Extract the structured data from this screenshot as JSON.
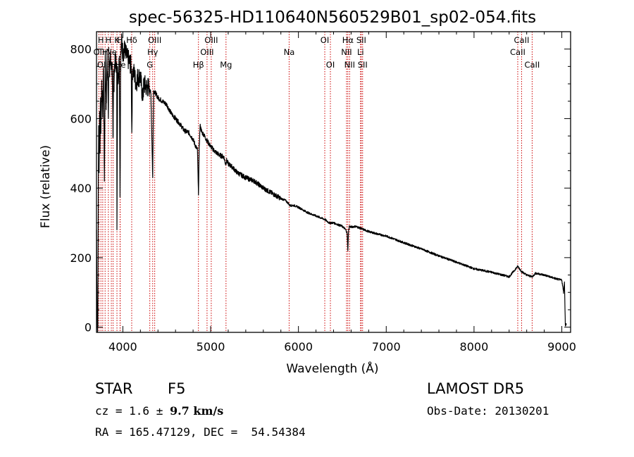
{
  "chart_data": {
    "type": "line",
    "title": "spec-56325-HD110640N560529B01_sp02-054.fits",
    "xlabel": "Wavelength (Å)",
    "ylabel": "Flux (relative)",
    "xlim": [
      3700,
      9100
    ],
    "ylim": [
      -15,
      850
    ],
    "x_ticks": [
      4000,
      5000,
      6000,
      7000,
      8000,
      9000
    ],
    "y_ticks": [
      0,
      200,
      400,
      600,
      800
    ],
    "grid": false,
    "line_color": "#000000",
    "marker_color": "#cc0000",
    "series": [
      {
        "x": [
          3700,
          3705,
          3710,
          3715,
          3720,
          3725,
          3730,
          3735,
          3740,
          3745,
          3750,
          3760,
          3770,
          3780,
          3790,
          3800,
          3810,
          3820,
          3830,
          3835,
          3840,
          3850,
          3860,
          3870,
          3880,
          3889,
          3895,
          3900,
          3910,
          3920,
          3930,
          3933,
          3940,
          3950,
          3960,
          3968,
          3975,
          3985,
          4000,
          4020,
          4040,
          4060,
          4080,
          4095,
          4102,
          4110,
          4130,
          4150,
          4170,
          4200,
          4226,
          4240,
          4270,
          4300,
          4320,
          4340,
          4350,
          4380,
          4400,
          4450,
          4500,
          4550,
          4600,
          4650,
          4700,
          4750,
          4800,
          4830,
          4850,
          4861,
          4870,
          4880,
          4900,
          4920,
          4950,
          5000,
          5050,
          5100,
          5150,
          5170,
          5183,
          5200,
          5250,
          5300,
          5400,
          5500,
          5600,
          5700,
          5800,
          5850,
          5890,
          5900,
          5950,
          6000,
          6100,
          6200,
          6300,
          6350,
          6400,
          6450,
          6500,
          6540,
          6555,
          6563,
          6570,
          6580,
          6600,
          6650,
          6700,
          6750,
          6800,
          6900,
          7000,
          7200,
          7400,
          7600,
          7800,
          8000,
          8200,
          8400,
          8498,
          8542,
          8600,
          8662,
          8700,
          8800,
          8900,
          8950,
          9000,
          9020,
          9030,
          9040,
          9050
        ],
        "y": [
          280,
          120,
          5,
          0,
          350,
          580,
          460,
          620,
          520,
          650,
          560,
          700,
          620,
          750,
          420,
          780,
          650,
          760,
          700,
          600,
          790,
          720,
          790,
          750,
          730,
          550,
          740,
          700,
          780,
          760,
          760,
          280,
          750,
          720,
          780,
          380,
          760,
          820,
          790,
          800,
          780,
          770,
          760,
          750,
          560,
          740,
          730,
          700,
          720,
          720,
          660,
          700,
          690,
          690,
          670,
          430,
          680,
          670,
          660,
          650,
          640,
          615,
          600,
          585,
          565,
          560,
          540,
          520,
          510,
          380,
          520,
          580,
          560,
          555,
          540,
          520,
          505,
          495,
          490,
          470,
          480,
          470,
          460,
          445,
          430,
          420,
          400,
          385,
          370,
          365,
          355,
          350,
          350,
          345,
          330,
          320,
          310,
          300,
          300,
          295,
          290,
          280,
          270,
          220,
          275,
          290,
          288,
          290,
          285,
          280,
          275,
          268,
          262,
          243,
          225,
          205,
          187,
          168,
          158,
          145,
          175,
          160,
          150,
          145,
          155,
          150,
          142,
          138,
          135,
          100,
          130,
          5,
          10
        ]
      }
    ],
    "lines": [
      {
        "x": 3727,
        "label": "OII",
        "row": 1
      },
      {
        "x": 3750,
        "label": "H",
        "row": 0
      },
      {
        "x": 3771,
        "label": "OII",
        "row": 2
      },
      {
        "x": 3798,
        "label": "H",
        "row": 1
      },
      {
        "x": 3835,
        "label": "H",
        "row": 0
      },
      {
        "x": 3869,
        "label": "Ne",
        "row": 1
      },
      {
        "x": 3889,
        "label": "H",
        "row": 2
      },
      {
        "x": 3933,
        "label": "K",
        "row": 0
      },
      {
        "x": 3968,
        "label": "H",
        "row": 0
      },
      {
        "x": 3970,
        "label": "He",
        "row": 2
      },
      {
        "x": 4101,
        "label": "Hδ",
        "row": 0
      },
      {
        "x": 4307,
        "label": "G",
        "row": 2
      },
      {
        "x": 4340,
        "label": "Hγ",
        "row": 1
      },
      {
        "x": 4363,
        "label": "OIII",
        "row": 0
      },
      {
        "x": 4861,
        "label": "Hβ",
        "row": 2
      },
      {
        "x": 4959,
        "label": "OIII",
        "row": 1
      },
      {
        "x": 5007,
        "label": "OIII",
        "row": 0
      },
      {
        "x": 5175,
        "label": "Mg",
        "row": 2
      },
      {
        "x": 5894,
        "label": "Na",
        "row": 1
      },
      {
        "x": 6300,
        "label": "OI",
        "row": 0
      },
      {
        "x": 6364,
        "label": "OI",
        "row": 2
      },
      {
        "x": 6548,
        "label": "NII",
        "row": 1
      },
      {
        "x": 6563,
        "label": "Hα",
        "row": 0
      },
      {
        "x": 6583,
        "label": "NII",
        "row": 2
      },
      {
        "x": 6707,
        "label": "Li",
        "row": 1
      },
      {
        "x": 6716,
        "label": "SII",
        "row": 0
      },
      {
        "x": 6731,
        "label": "SII",
        "row": 2
      },
      {
        "x": 8498,
        "label": "CaII",
        "row": 1
      },
      {
        "x": 8542,
        "label": "CaII",
        "row": 0
      },
      {
        "x": 8662,
        "label": "CaII",
        "row": 2
      }
    ]
  },
  "info": {
    "class_label": "STAR",
    "subclass": "F5",
    "survey": "LAMOST DR5",
    "cz_prefix": "cz = 1.6 ± ",
    "cz_value": "9.7 km/s",
    "obs_date": "Obs-Date: 20130201",
    "coords": "RA = 165.47129, DEC =  54.54384"
  }
}
